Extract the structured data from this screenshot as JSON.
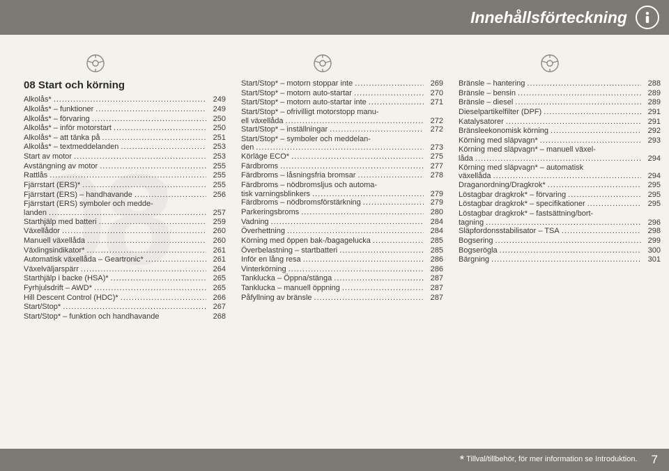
{
  "header": {
    "title": "Innehållsförteckning"
  },
  "section": {
    "title": "08 Start och körning"
  },
  "footer": {
    "note_star": "*",
    "note": " Tillval/tillbehör, för mer information se Introduktion.",
    "page": "7"
  },
  "col1": [
    {
      "label": "Alkolås*",
      "page": "249"
    },
    {
      "label": "Alkolås* – funktioner",
      "page": "249"
    },
    {
      "label": "Alkolås* – förvaring",
      "page": "250"
    },
    {
      "label": "Alkolås* – inför motorstart",
      "page": "250"
    },
    {
      "label": "Alkolås* – att tänka på",
      "page": "251"
    },
    {
      "label": "Alkolås* – textmeddelanden",
      "page": "253"
    },
    {
      "label": "Start av motor",
      "page": "253"
    },
    {
      "label": "Avstängning av motor",
      "page": "255"
    },
    {
      "label": "Rattlås",
      "page": "255"
    },
    {
      "label": "Fjärrstart (ERS)*",
      "page": "255"
    },
    {
      "label": "Fjärrstart (ERS) – handhavande",
      "page": "256"
    },
    {
      "label": "Fjärrstart (ERS) symboler och medde-",
      "tail": "landen",
      "page": "257"
    },
    {
      "label": "Starthjälp med batteri",
      "page": "259"
    },
    {
      "label": "Växellådor",
      "page": "260"
    },
    {
      "label": "Manuell växellåda",
      "page": "260"
    },
    {
      "label": "Växlingsindikator*",
      "page": "261"
    },
    {
      "label": "Automatisk växellåda – Geartronic*",
      "page": "261"
    },
    {
      "label": "Växelväljarspärr",
      "page": "264"
    },
    {
      "label": "Starthjälp i backe (HSA)*",
      "page": "265"
    },
    {
      "label": "Fyrhjulsdrift – AWD*",
      "page": "265"
    },
    {
      "label": "Hill Descent Control (HDC)*",
      "page": "266"
    },
    {
      "label": "Start/Stop*",
      "page": "267"
    },
    {
      "label": "Start/Stop* – funktion och handhavande",
      "page": "268",
      "nodots": true
    }
  ],
  "col2": [
    {
      "label": "Start/Stop* – motorn stoppar inte",
      "page": "269"
    },
    {
      "label": "Start/Stop* – motorn auto-startar",
      "page": "270"
    },
    {
      "label": "Start/Stop* – motorn auto-startar inte",
      "page": "271"
    },
    {
      "label": "Start/Stop* – ofrivilligt motorstopp manu-",
      "tail": "ell växellåda",
      "page": "272"
    },
    {
      "label": "Start/Stop* – inställningar",
      "page": "272"
    },
    {
      "label": "Start/Stop* – symboler och meddelan-",
      "tail": "den",
      "page": "273"
    },
    {
      "label": "Körläge ECO*",
      "page": "275"
    },
    {
      "label": "Färdbroms",
      "page": "277"
    },
    {
      "label": "Färdbroms – låsningsfria bromsar",
      "page": "278"
    },
    {
      "label": "Färdbroms – nödbromsljus och automa-",
      "tail": "tisk varningsblinkers",
      "page": "279"
    },
    {
      "label": "Färdbroms – nödbromsförstärkning",
      "page": "279"
    },
    {
      "label": "Parkeringsbroms",
      "page": "280"
    },
    {
      "label": "Vadning",
      "page": "284"
    },
    {
      "label": "Överhettning",
      "page": "284"
    },
    {
      "label": "Körning med öppen bak-/bagagelucka",
      "page": "285"
    },
    {
      "label": "Överbelastning – startbatteri",
      "page": "285"
    },
    {
      "label": "Inför en lång resa",
      "page": "286"
    },
    {
      "label": "Vinterkörning",
      "page": "286"
    },
    {
      "label": "Tanklucka – Öppna/stänga",
      "page": "287"
    },
    {
      "label": "Tanklucka – manuell öppning",
      "page": "287"
    },
    {
      "label": "Påfyllning av bränsle",
      "page": "287"
    }
  ],
  "col3": [
    {
      "label": "Bränsle – hantering",
      "page": "288"
    },
    {
      "label": "Bränsle – bensin",
      "page": "289"
    },
    {
      "label": "Bränsle – diesel",
      "page": "289"
    },
    {
      "label": "Dieselpartikelfilter (DPF)",
      "page": "291"
    },
    {
      "label": "Katalysatorer",
      "page": "291"
    },
    {
      "label": "Bränsleekonomisk körning",
      "page": "292"
    },
    {
      "label": "Körning med släpvagn*",
      "page": "293"
    },
    {
      "label": "Körning med släpvagn* – manuell växel-",
      "tail": "låda",
      "page": "294"
    },
    {
      "label": "Körning med släpvagn* – automatisk",
      "tail": "växellåda",
      "page": "294"
    },
    {
      "label": "Draganordning/Dragkrok*",
      "page": "295"
    },
    {
      "label": "Löstagbar dragkrok* – förvaring",
      "page": "295"
    },
    {
      "label": "Löstagbar dragkrok* – specifikationer",
      "page": "295"
    },
    {
      "label": "Löstagbar dragkrok* – fastsättning/bort-",
      "tail": "tagning",
      "page": "296"
    },
    {
      "label": "Släpfordonsstabilisator – TSA",
      "page": "298"
    },
    {
      "label": "Bogsering",
      "page": "299"
    },
    {
      "label": "Bogserögla",
      "page": "300"
    },
    {
      "label": "Bärgning",
      "page": "301"
    }
  ]
}
